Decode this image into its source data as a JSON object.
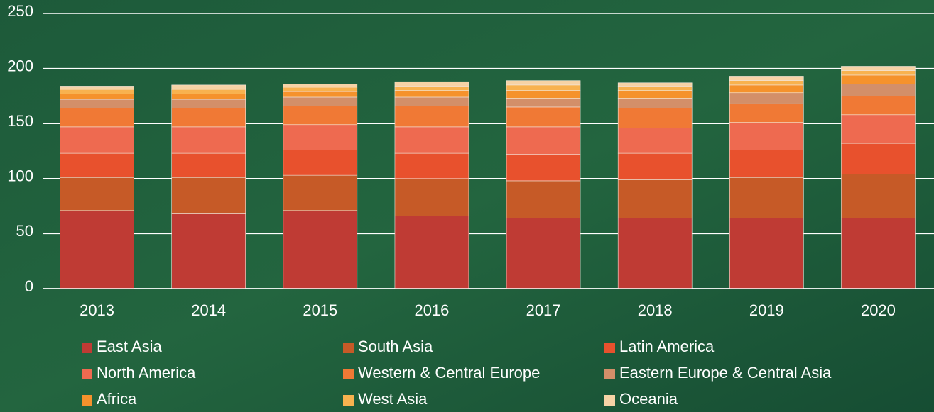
{
  "chart_data": {
    "type": "stacked_bar",
    "categories": [
      "2013",
      "2014",
      "2015",
      "2016",
      "2017",
      "2018",
      "2019",
      "2020"
    ],
    "series": [
      {
        "name": "East Asia",
        "color": "#bf3b34",
        "values": [
          71,
          68,
          71,
          66,
          64,
          64,
          64,
          64
        ]
      },
      {
        "name": "South Asia",
        "color": "#c65a27",
        "values": [
          30,
          33,
          32,
          34,
          34,
          35,
          37,
          40
        ]
      },
      {
        "name": "Latin America",
        "color": "#e8512d",
        "values": [
          22,
          22,
          23,
          23,
          24,
          24,
          25,
          28
        ]
      },
      {
        "name": "North America",
        "color": "#ee6a50",
        "values": [
          24,
          24,
          23,
          24,
          25,
          23,
          25,
          26
        ]
      },
      {
        "name": "Western & Central Europe",
        "color": "#f07935",
        "values": [
          17,
          17,
          17,
          19,
          18,
          18,
          17,
          17
        ]
      },
      {
        "name": "Eastern Europe & Central Asia",
        "color": "#d38f69",
        "values": [
          8,
          8,
          8,
          8,
          8,
          9,
          10,
          11
        ]
      },
      {
        "name": "Africa",
        "color": "#f5922c",
        "values": [
          5,
          5,
          5,
          6,
          7,
          7,
          7,
          8
        ]
      },
      {
        "name": "West Asia",
        "color": "#f8b24f",
        "values": [
          4,
          4,
          4,
          4,
          5,
          4,
          4,
          4
        ]
      },
      {
        "name": "Oceania",
        "color": "#f6d3a6",
        "values": [
          3,
          4,
          3,
          4,
          4,
          3,
          4,
          4
        ]
      }
    ],
    "ylim": [
      0,
      250
    ],
    "yticks": [
      0,
      50,
      100,
      150,
      200,
      250
    ],
    "grid": true
  }
}
